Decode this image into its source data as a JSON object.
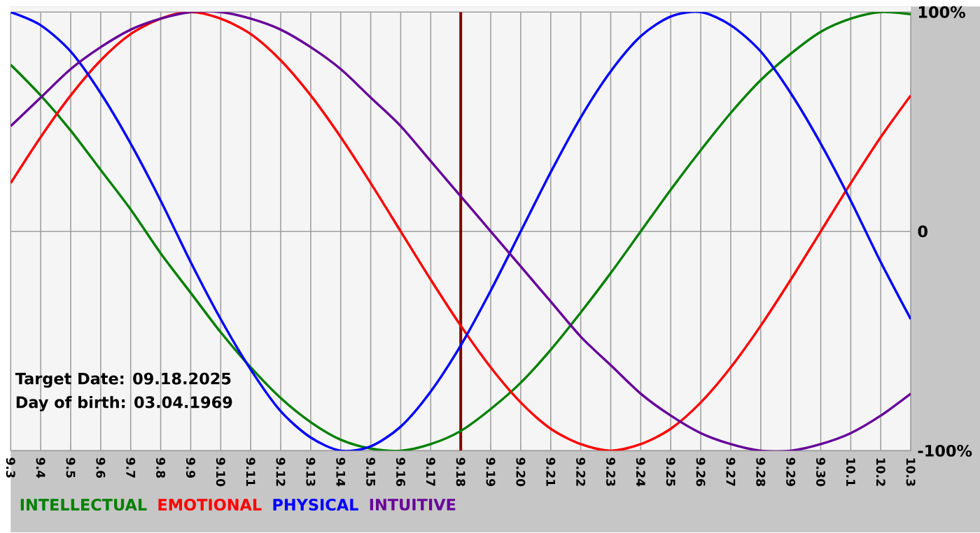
{
  "chart_data": {
    "type": "line",
    "categories": [
      "9.3",
      "9.4",
      "9.5",
      "9.6",
      "9.7",
      "9.8",
      "9.9",
      "9.10",
      "9.11",
      "9.12",
      "9.13",
      "9.14",
      "9.15",
      "9.16",
      "9.17",
      "9.18",
      "9.19",
      "9.20",
      "9.21",
      "9.22",
      "9.23",
      "9.24",
      "9.25",
      "9.26",
      "9.27",
      "9.28",
      "9.29",
      "9.30",
      "10.1",
      "10.2",
      "10.3"
    ],
    "series": [
      {
        "name": "INTELLECTUAL",
        "color": "#008000",
        "values": [
          76,
          62,
          46,
          28,
          10,
          -10,
          -28,
          -46,
          -62,
          -76,
          -87,
          -95,
          -99,
          -100,
          -97,
          -91,
          -81,
          -69,
          -54,
          -37,
          -19,
          0,
          19,
          37,
          54,
          69,
          81,
          91,
          97,
          100,
          99
        ]
      },
      {
        "name": "EMOTIONAL",
        "color": "#ff0000",
        "values": [
          22,
          43,
          62,
          78,
          90,
          97,
          100,
          97,
          90,
          78,
          62,
          43,
          22,
          0,
          -22,
          -43,
          -62,
          -78,
          -90,
          -97,
          -100,
          -97,
          -90,
          -78,
          -62,
          -43,
          -22,
          0,
          22,
          43,
          62
        ]
      },
      {
        "name": "PHYSICAL",
        "color": "#0000ff",
        "values": [
          100,
          94,
          82,
          63,
          40,
          14,
          -14,
          -40,
          -63,
          -82,
          -94,
          -100,
          -98,
          -89,
          -73,
          -52,
          -27,
          0,
          27,
          52,
          73,
          89,
          98,
          100,
          94,
          82,
          63,
          40,
          14,
          -14,
          -40
        ]
      },
      {
        "name": "INTUITIVE",
        "color": "#660099",
        "values": [
          48,
          61,
          74,
          84,
          92,
          97,
          100,
          100,
          97,
          92,
          84,
          74,
          61,
          48,
          32,
          16,
          0,
          -16,
          -32,
          -48,
          -61,
          -74,
          -84,
          -92,
          -97,
          -100,
          -100,
          -97,
          -92,
          -84,
          -74
        ]
      }
    ],
    "ylim": [
      -100,
      100
    ],
    "yticks": [
      {
        "value": -100,
        "label": "-100%"
      },
      0,
      {
        "value": 100,
        "label": "100%"
      }
    ],
    "ref_lines": [
      {
        "axis": "x",
        "value": "9.18",
        "color": "#800000"
      }
    ],
    "annotations": [
      "Target Date: 09.18.2025",
      "Day of birth: 03.04.1969"
    ],
    "grid": true,
    "legend": "bottom",
    "marker": "none",
    "line_style": "solid"
  }
}
